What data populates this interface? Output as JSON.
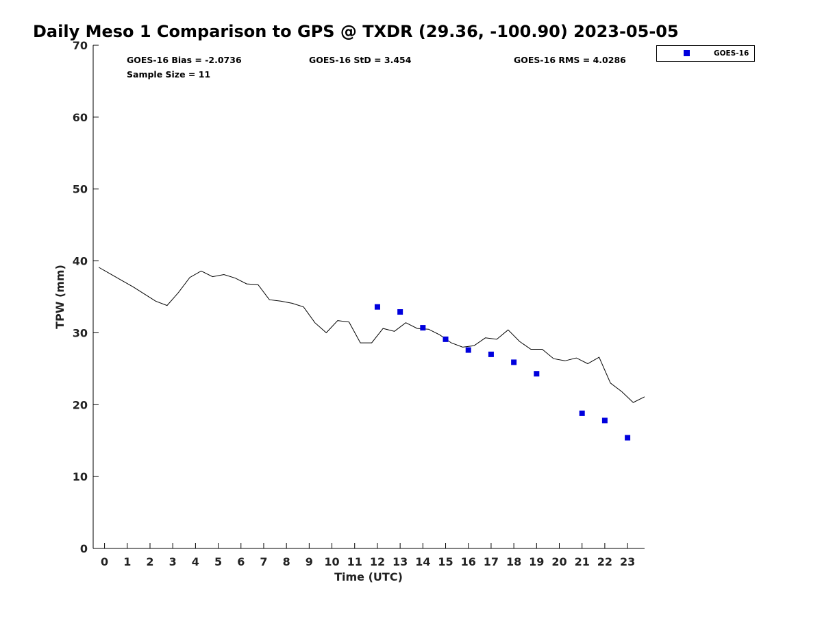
{
  "chart_data": {
    "type": "line",
    "title": "Daily Meso 1 Comparison to GPS @ TXDR (29.36, -100.90) 2023-05-05",
    "xlabel": "Time (UTC)",
    "ylabel": "TPW (mm)",
    "xlim": [
      -0.5,
      23.75
    ],
    "ylim": [
      0,
      70
    ],
    "xticks": [
      0,
      1,
      2,
      3,
      4,
      5,
      6,
      7,
      8,
      9,
      10,
      11,
      12,
      13,
      14,
      15,
      16,
      17,
      18,
      19,
      20,
      21,
      22,
      23
    ],
    "yticks": [
      0,
      10,
      20,
      30,
      40,
      50,
      60,
      70
    ],
    "grid": false,
    "legend_position": "top-right, outside plot",
    "stats": {
      "bias": "GOES-16 Bias = -2.0736",
      "std": "GOES-16 StD = 3.454",
      "rms": "GOES-16 RMS = 4.0286",
      "sample": "Sample Size = 11"
    },
    "series": [
      {
        "type": "line",
        "color": "#000000",
        "x": [
          -0.25,
          0.25,
          0.75,
          1.25,
          1.75,
          2.25,
          2.75,
          3.25,
          3.75,
          4.25,
          4.75,
          5.25,
          5.75,
          6.25,
          6.75,
          7.25,
          7.75,
          8.25,
          8.75,
          9.25,
          9.75,
          10.25,
          10.75,
          11.25,
          11.75,
          12.25,
          12.75,
          13.25,
          13.75,
          14.25,
          14.75,
          15.25,
          15.75,
          16.25,
          16.75,
          17.25,
          17.75,
          18.25,
          18.75,
          19.25,
          19.75,
          20.25,
          20.75,
          21.25,
          21.75,
          22.25,
          22.75,
          23.25,
          23.75
        ],
        "values": [
          39.1,
          38.2,
          37.3,
          36.4,
          35.4,
          34.4,
          33.8,
          35.6,
          37.7,
          38.6,
          37.8,
          38.1,
          37.6,
          36.8,
          36.7,
          34.6,
          34.4,
          34.1,
          33.6,
          31.4,
          30.0,
          31.7,
          31.5,
          28.6,
          28.6,
          30.6,
          30.2,
          31.4,
          30.6,
          30.5,
          29.7,
          28.6,
          28.0,
          28.2,
          29.3,
          29.1,
          30.4,
          28.8,
          27.7,
          27.7,
          26.4,
          26.1,
          26.5,
          25.7,
          26.6,
          23.0,
          21.8,
          20.3,
          21.1
        ]
      },
      {
        "name": "GOES-16",
        "type": "scatter",
        "marker": "square",
        "color": "#0000dd",
        "x": [
          12,
          13,
          14,
          15,
          16,
          17,
          18,
          19,
          21,
          22,
          23
        ],
        "values": [
          33.6,
          32.9,
          30.7,
          29.1,
          27.6,
          27.0,
          25.9,
          24.3,
          18.8,
          17.8,
          15.4
        ]
      }
    ]
  }
}
